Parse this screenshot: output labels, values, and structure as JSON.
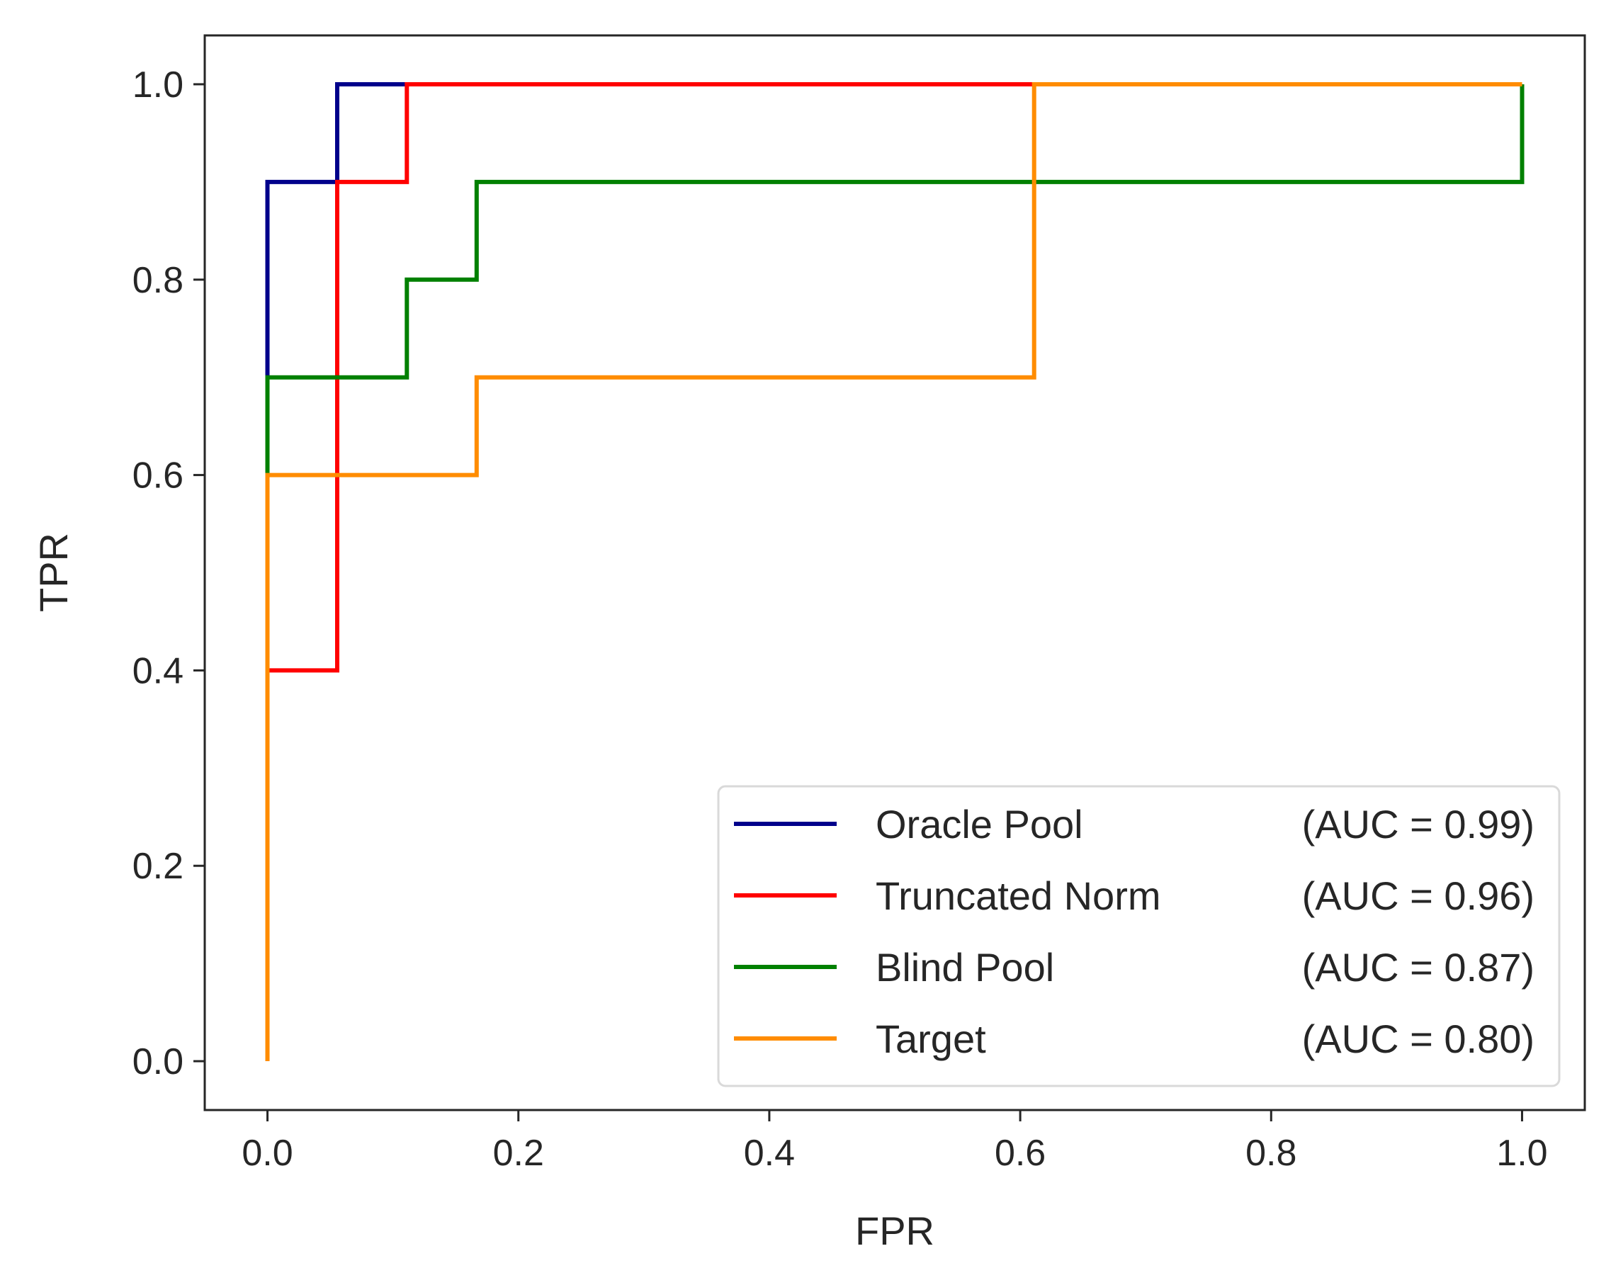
{
  "chart_data": {
    "type": "line",
    "title": "",
    "xlabel": "FPR",
    "ylabel": "TPR",
    "xlim": [
      -0.05,
      1.05
    ],
    "ylim": [
      -0.05,
      1.05
    ],
    "xticks": [
      0.0,
      0.2,
      0.4,
      0.6,
      0.8,
      1.0
    ],
    "xtick_labels": [
      "0.0",
      "0.2",
      "0.4",
      "0.6",
      "0.8",
      "1.0"
    ],
    "yticks": [
      0.0,
      0.2,
      0.4,
      0.6,
      0.8,
      1.0
    ],
    "ytick_labels": [
      "0.0",
      "0.2",
      "0.4",
      "0.6",
      "0.8",
      "1.0"
    ],
    "grid": false,
    "legend_position": "lower-right",
    "series": [
      {
        "name": "Oracle Pool",
        "auc_label": "(AUC = 0.99)",
        "color": "#00008b",
        "x": [
          0.0,
          0.0,
          0.0556,
          0.0556,
          1.0
        ],
        "y": [
          0.0,
          0.9,
          0.9,
          1.0,
          1.0
        ]
      },
      {
        "name": "Truncated Norm",
        "auc_label": "(AUC = 0.96)",
        "color": "#ff0000",
        "x": [
          0.0,
          0.0,
          0.0556,
          0.0556,
          0.1111,
          0.1111,
          0.6111,
          1.0
        ],
        "y": [
          0.0,
          0.4,
          0.4,
          0.9,
          0.9,
          1.0,
          1.0,
          1.0
        ]
      },
      {
        "name": "Blind Pool",
        "auc_label": "(AUC = 0.87)",
        "color": "#008000",
        "x": [
          0.0,
          0.0,
          0.1111,
          0.1111,
          0.1667,
          0.1667,
          1.0,
          1.0
        ],
        "y": [
          0.0,
          0.7,
          0.7,
          0.8,
          0.8,
          0.9,
          0.9,
          1.0
        ]
      },
      {
        "name": "Target",
        "auc_label": "(AUC = 0.80)",
        "color": "#ff8c00",
        "x": [
          0.0,
          0.0,
          0.1667,
          0.1667,
          0.6111,
          0.6111,
          1.0
        ],
        "y": [
          0.0,
          0.6,
          0.6,
          0.7,
          0.7,
          1.0,
          1.0
        ]
      }
    ]
  }
}
